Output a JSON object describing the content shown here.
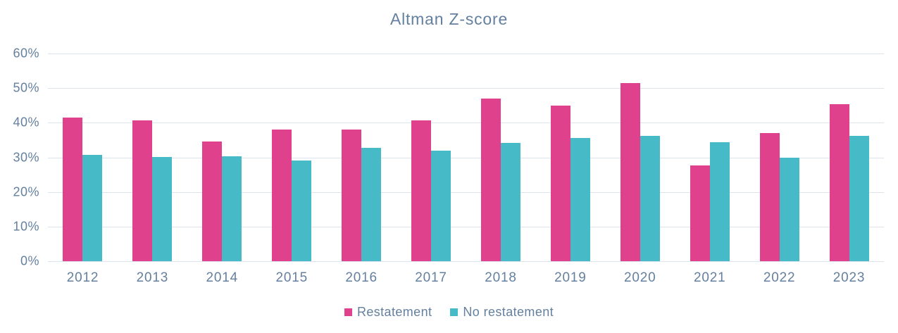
{
  "title": "Altman Z-score",
  "colors": {
    "restatement": "#e0418c",
    "no_restatement": "#47bac8",
    "gridline": "#dde3ed",
    "text": "#64809e"
  },
  "legend": {
    "items": [
      {
        "label": "Restatement",
        "color": "#e0418c"
      },
      {
        "label": "No restatement",
        "color": "#47bac8"
      }
    ]
  },
  "chart_data": {
    "type": "bar",
    "title": "Altman Z-score",
    "categories": [
      "2012",
      "2013",
      "2014",
      "2015",
      "2016",
      "2017",
      "2018",
      "2019",
      "2020",
      "2021",
      "2022",
      "2023"
    ],
    "series": [
      {
        "name": "Restatement",
        "color": "#e0418c",
        "values": [
          41.5,
          40.7,
          34.5,
          38.1,
          38.1,
          40.7,
          47.0,
          45.0,
          51.5,
          27.6,
          37.1,
          45.4
        ]
      },
      {
        "name": "No restatement",
        "color": "#47bac8",
        "values": [
          30.8,
          30.2,
          30.4,
          29.0,
          32.8,
          32.0,
          34.1,
          35.6,
          36.2,
          34.4,
          29.8,
          36.3
        ]
      }
    ],
    "xlabel": "",
    "ylabel": "",
    "ylim": [
      0,
      60
    ],
    "ytick_step": 10,
    "yticks": [
      "0%",
      "10%",
      "20%",
      "30%",
      "40%",
      "50%",
      "60%"
    ],
    "grid": true,
    "legend_position": "bottom"
  }
}
